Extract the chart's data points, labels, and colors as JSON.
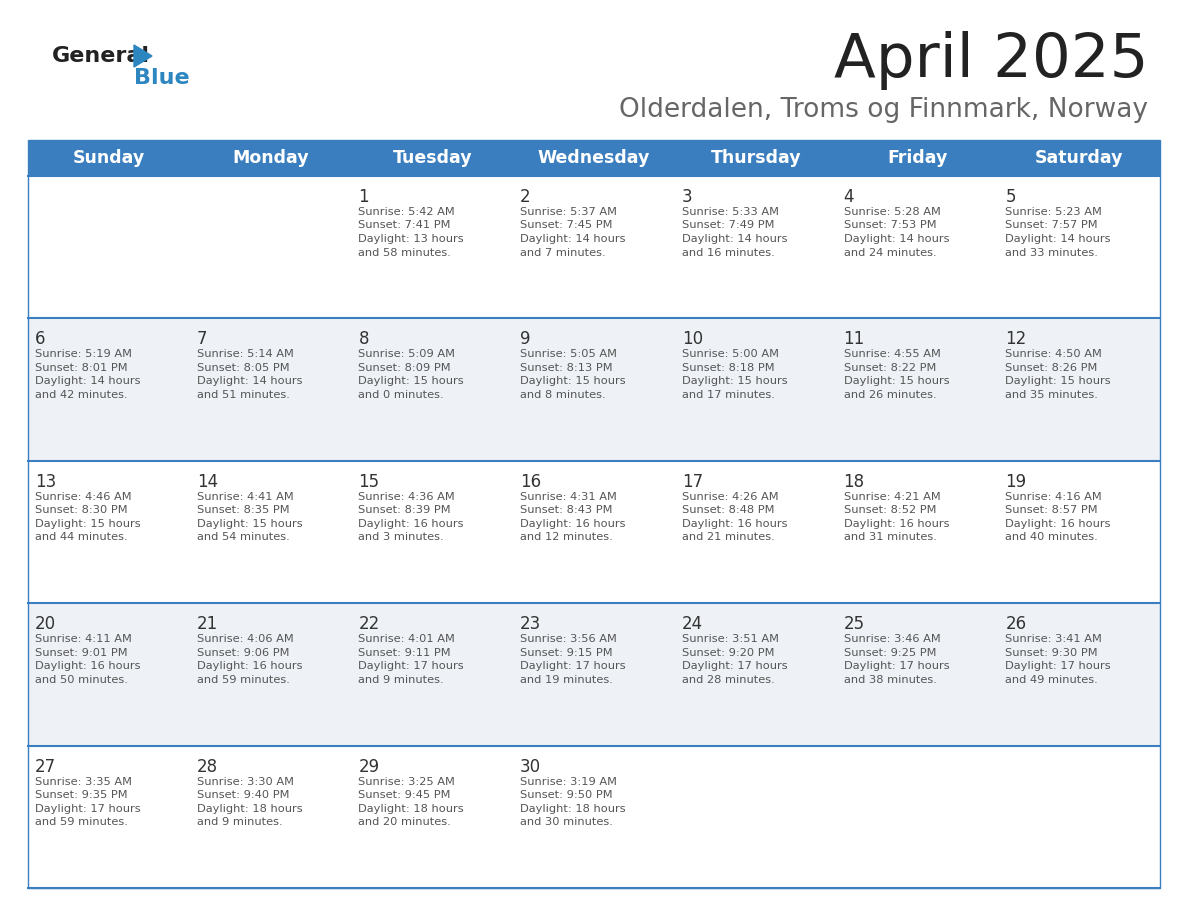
{
  "title": "April 2025",
  "subtitle": "Olderdalen, Troms og Finnmark, Norway",
  "days_of_week": [
    "Sunday",
    "Monday",
    "Tuesday",
    "Wednesday",
    "Thursday",
    "Friday",
    "Saturday"
  ],
  "header_bg": "#3a7ebf",
  "header_text": "#ffffff",
  "row_bg_even": "#ffffff",
  "row_bg_odd": "#eef2f7",
  "divider_color": "#3a7ebf",
  "day_num_color": "#333333",
  "cell_text_color": "#555555",
  "title_color": "#222222",
  "subtitle_color": "#666666",
  "logo_general_color": "#222222",
  "logo_blue_color": "#2e86c1",
  "calendar_data": {
    "1": {
      "sunrise": "5:42 AM",
      "sunset": "7:41 PM",
      "daylight_hours": 13,
      "daylight_minutes": 58
    },
    "2": {
      "sunrise": "5:37 AM",
      "sunset": "7:45 PM",
      "daylight_hours": 14,
      "daylight_minutes": 7
    },
    "3": {
      "sunrise": "5:33 AM",
      "sunset": "7:49 PM",
      "daylight_hours": 14,
      "daylight_minutes": 16
    },
    "4": {
      "sunrise": "5:28 AM",
      "sunset": "7:53 PM",
      "daylight_hours": 14,
      "daylight_minutes": 24
    },
    "5": {
      "sunrise": "5:23 AM",
      "sunset": "7:57 PM",
      "daylight_hours": 14,
      "daylight_minutes": 33
    },
    "6": {
      "sunrise": "5:19 AM",
      "sunset": "8:01 PM",
      "daylight_hours": 14,
      "daylight_minutes": 42
    },
    "7": {
      "sunrise": "5:14 AM",
      "sunset": "8:05 PM",
      "daylight_hours": 14,
      "daylight_minutes": 51
    },
    "8": {
      "sunrise": "5:09 AM",
      "sunset": "8:09 PM",
      "daylight_hours": 15,
      "daylight_minutes": 0
    },
    "9": {
      "sunrise": "5:05 AM",
      "sunset": "8:13 PM",
      "daylight_hours": 15,
      "daylight_minutes": 8
    },
    "10": {
      "sunrise": "5:00 AM",
      "sunset": "8:18 PM",
      "daylight_hours": 15,
      "daylight_minutes": 17
    },
    "11": {
      "sunrise": "4:55 AM",
      "sunset": "8:22 PM",
      "daylight_hours": 15,
      "daylight_minutes": 26
    },
    "12": {
      "sunrise": "4:50 AM",
      "sunset": "8:26 PM",
      "daylight_hours": 15,
      "daylight_minutes": 35
    },
    "13": {
      "sunrise": "4:46 AM",
      "sunset": "8:30 PM",
      "daylight_hours": 15,
      "daylight_minutes": 44
    },
    "14": {
      "sunrise": "4:41 AM",
      "sunset": "8:35 PM",
      "daylight_hours": 15,
      "daylight_minutes": 54
    },
    "15": {
      "sunrise": "4:36 AM",
      "sunset": "8:39 PM",
      "daylight_hours": 16,
      "daylight_minutes": 3
    },
    "16": {
      "sunrise": "4:31 AM",
      "sunset": "8:43 PM",
      "daylight_hours": 16,
      "daylight_minutes": 12
    },
    "17": {
      "sunrise": "4:26 AM",
      "sunset": "8:48 PM",
      "daylight_hours": 16,
      "daylight_minutes": 21
    },
    "18": {
      "sunrise": "4:21 AM",
      "sunset": "8:52 PM",
      "daylight_hours": 16,
      "daylight_minutes": 31
    },
    "19": {
      "sunrise": "4:16 AM",
      "sunset": "8:57 PM",
      "daylight_hours": 16,
      "daylight_minutes": 40
    },
    "20": {
      "sunrise": "4:11 AM",
      "sunset": "9:01 PM",
      "daylight_hours": 16,
      "daylight_minutes": 50
    },
    "21": {
      "sunrise": "4:06 AM",
      "sunset": "9:06 PM",
      "daylight_hours": 16,
      "daylight_minutes": 59
    },
    "22": {
      "sunrise": "4:01 AM",
      "sunset": "9:11 PM",
      "daylight_hours": 17,
      "daylight_minutes": 9
    },
    "23": {
      "sunrise": "3:56 AM",
      "sunset": "9:15 PM",
      "daylight_hours": 17,
      "daylight_minutes": 19
    },
    "24": {
      "sunrise": "3:51 AM",
      "sunset": "9:20 PM",
      "daylight_hours": 17,
      "daylight_minutes": 28
    },
    "25": {
      "sunrise": "3:46 AM",
      "sunset": "9:25 PM",
      "daylight_hours": 17,
      "daylight_minutes": 38
    },
    "26": {
      "sunrise": "3:41 AM",
      "sunset": "9:30 PM",
      "daylight_hours": 17,
      "daylight_minutes": 49
    },
    "27": {
      "sunrise": "3:35 AM",
      "sunset": "9:35 PM",
      "daylight_hours": 17,
      "daylight_minutes": 59
    },
    "28": {
      "sunrise": "3:30 AM",
      "sunset": "9:40 PM",
      "daylight_hours": 18,
      "daylight_minutes": 9
    },
    "29": {
      "sunrise": "3:25 AM",
      "sunset": "9:45 PM",
      "daylight_hours": 18,
      "daylight_minutes": 20
    },
    "30": {
      "sunrise": "3:19 AM",
      "sunset": "9:50 PM",
      "daylight_hours": 18,
      "daylight_minutes": 30
    }
  },
  "weeks": [
    [
      null,
      null,
      1,
      2,
      3,
      4,
      5
    ],
    [
      6,
      7,
      8,
      9,
      10,
      11,
      12
    ],
    [
      13,
      14,
      15,
      16,
      17,
      18,
      19
    ],
    [
      20,
      21,
      22,
      23,
      24,
      25,
      26
    ],
    [
      27,
      28,
      29,
      30,
      null,
      null,
      null
    ]
  ]
}
